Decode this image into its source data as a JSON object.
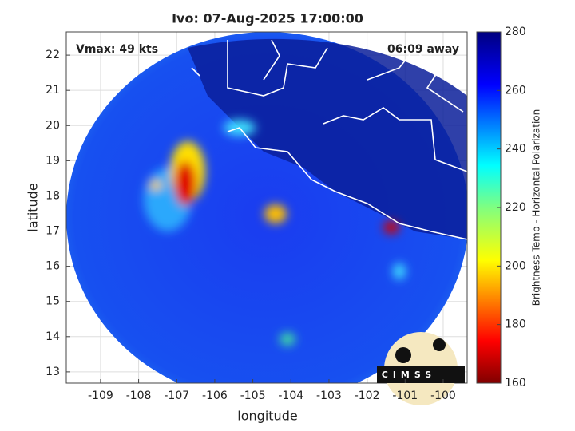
{
  "chart_data": {
    "type": "map",
    "title": "Ivo: 07-Aug-2025 17:00:00",
    "xlabel": "longitude",
    "ylabel": "latitude",
    "xlim": [
      -109.9,
      -99.37
    ],
    "ylim": [
      12.68,
      22.66
    ],
    "xticks": [
      -109,
      -108,
      -107,
      -106,
      -105,
      -104,
      -103,
      -102,
      -101,
      -100
    ],
    "yticks": [
      13,
      14,
      15,
      16,
      17,
      18,
      19,
      20,
      21,
      22
    ],
    "grid": true,
    "annotations": [
      "Vmax: 49 kts",
      "06:09 away"
    ],
    "logo_text": "CIMSS",
    "colorbar": {
      "label": "Brightness Temp - Horizontal Polarization",
      "lim": [
        160,
        280
      ],
      "ticks": [
        160,
        180,
        200,
        220,
        240,
        260,
        280
      ]
    }
  }
}
